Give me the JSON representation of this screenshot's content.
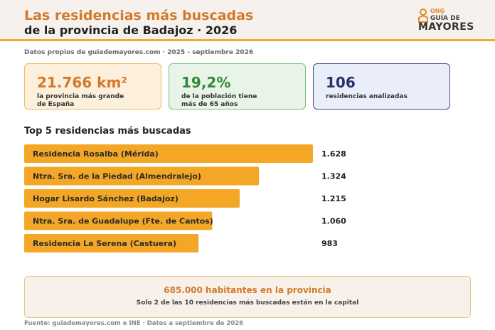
{
  "header": {
    "title_line1": "Las residencias más buscadas",
    "title_line2": "de la provincia de Badajoz · 2026"
  },
  "logo": {
    "ong": "ONG",
    "guia": "GUÍA DE",
    "mayores": "MAYORES",
    "icon": "person-icon",
    "accent": "#e08a2c"
  },
  "subtitle": "Datos propios de guiademayores.com · 2025 - septiembre 2026",
  "cards": [
    {
      "value": "21.766 km²",
      "label": "la provincia más grande de España",
      "color": "#d2792a"
    },
    {
      "value": "19,2%",
      "label": "de la población tiene más de 65 años",
      "color": "#2f8a3a"
    },
    {
      "value": "106",
      "label": "residencias analizadas",
      "color": "#26336a"
    }
  ],
  "chart_data": {
    "type": "bar",
    "orientation": "horizontal",
    "title": "Top 5 residencias más buscadas",
    "categories": [
      "Residencia Rosalba (Mérida)",
      "Ntra. Sra. de la Piedad (Almendralejo)",
      "Hogar Lisardo Sánchez (Badajoz)",
      "Ntra. Sra. de Guadalupe (Fte. de Cantos)",
      "Residencia La Serena (Castuera)"
    ],
    "values": [
      1628,
      1324,
      1215,
      1060,
      983
    ],
    "value_labels": [
      "1.628",
      "1.324",
      "1.215",
      "1.060",
      "983"
    ],
    "bar_color": "#f4a726",
    "grid": false
  },
  "footer": {
    "headline": "685.000 habitantes en la provincia",
    "note": "Solo 2 de las 10 residencias más buscadas están en la capital"
  },
  "source": "Fuente: guiademayores.com e INE · Datos a septiembre de 2026"
}
